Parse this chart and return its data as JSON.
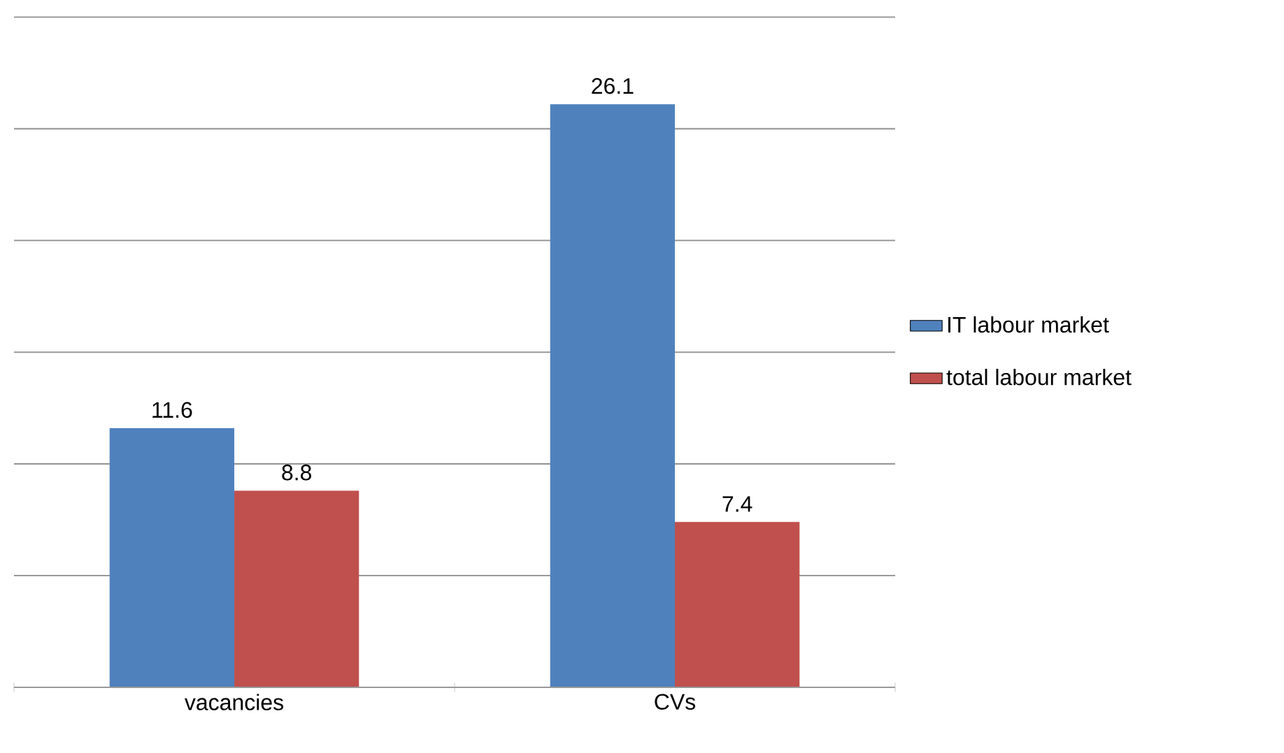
{
  "chart_data": {
    "type": "bar",
    "categories": [
      "vacancies",
      "CVs"
    ],
    "series": [
      {
        "name": "IT labour market",
        "color": "#4f81bd",
        "values": [
          11.6,
          26.1
        ]
      },
      {
        "name": "total labour market",
        "color": "#c0504d",
        "values": [
          8.8,
          7.4
        ]
      }
    ],
    "tick_labels": "x",
    "grid": "y",
    "legend": "right",
    "data_labels": true
  }
}
